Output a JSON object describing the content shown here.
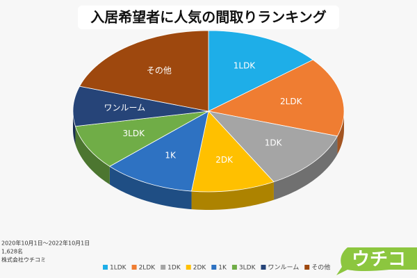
{
  "chart_data": {
    "type": "pie",
    "title": "入居希望者に人気の間取りランキング",
    "categories": [
      "1LDK",
      "2LDK",
      "1DK",
      "2DK",
      "1K",
      "3LDK",
      "ワンルーム",
      "その他"
    ],
    "values": [
      14,
      16,
      12,
      10,
      11,
      9,
      8,
      20
    ],
    "colors": [
      "#1eaee8",
      "#ef7d32",
      "#a5a5a5",
      "#ffc000",
      "#2e72c2",
      "#70ad47",
      "#264478",
      "#9e480e"
    ],
    "legend": "bottom",
    "notes": [
      "2020年10月1日～2022年10月1日",
      "1,628名",
      "株式会社ウチコミ"
    ],
    "logo": "ウチコ"
  }
}
